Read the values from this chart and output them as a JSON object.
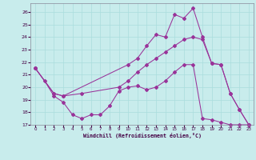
{
  "xlabel": "Windchill (Refroidissement éolien,°C)",
  "bg_color": "#c8ecec",
  "grid_color": "#aadddd",
  "line_color": "#993399",
  "spine_color": "#888899",
  "tick_color": "#440044",
  "xlim": [
    -0.5,
    23.5
  ],
  "ylim": [
    17,
    26.7
  ],
  "xticks": [
    0,
    1,
    2,
    3,
    4,
    5,
    6,
    7,
    8,
    9,
    10,
    11,
    12,
    13,
    14,
    15,
    16,
    17,
    18,
    19,
    20,
    21,
    22,
    23
  ],
  "yticks": [
    17,
    18,
    19,
    20,
    21,
    22,
    23,
    24,
    25,
    26
  ],
  "line1_x": [
    0,
    1,
    2,
    3,
    4,
    5,
    6,
    7,
    8,
    9,
    10,
    11,
    12,
    13,
    14,
    15,
    16,
    17,
    18,
    19,
    20,
    21,
    22,
    23
  ],
  "line1_y": [
    21.5,
    20.5,
    19.3,
    18.8,
    17.8,
    17.5,
    17.8,
    17.8,
    18.5,
    19.7,
    20.0,
    20.1,
    19.8,
    20.0,
    20.5,
    21.2,
    21.8,
    21.8,
    17.5,
    17.4,
    17.2,
    17.0,
    17.0,
    17.0
  ],
  "line2_x": [
    0,
    2,
    3,
    5,
    9,
    10,
    11,
    12,
    13,
    14,
    15,
    16,
    17,
    18,
    19,
    20,
    21,
    22,
    23
  ],
  "line2_y": [
    21.5,
    19.5,
    19.3,
    19.5,
    20.0,
    20.5,
    21.2,
    21.8,
    22.3,
    22.8,
    23.3,
    23.8,
    24.0,
    23.8,
    21.9,
    21.8,
    19.5,
    18.2,
    17.0
  ],
  "line3_x": [
    0,
    2,
    3,
    10,
    11,
    12,
    13,
    14,
    15,
    16,
    17,
    18,
    19,
    20,
    21,
    22,
    23
  ],
  "line3_y": [
    21.5,
    19.5,
    19.3,
    21.8,
    22.3,
    23.3,
    24.2,
    24.0,
    25.8,
    25.5,
    26.3,
    24.0,
    21.9,
    21.8,
    19.5,
    18.2,
    17.0
  ],
  "figsize": [
    3.2,
    2.0
  ],
  "dpi": 100
}
